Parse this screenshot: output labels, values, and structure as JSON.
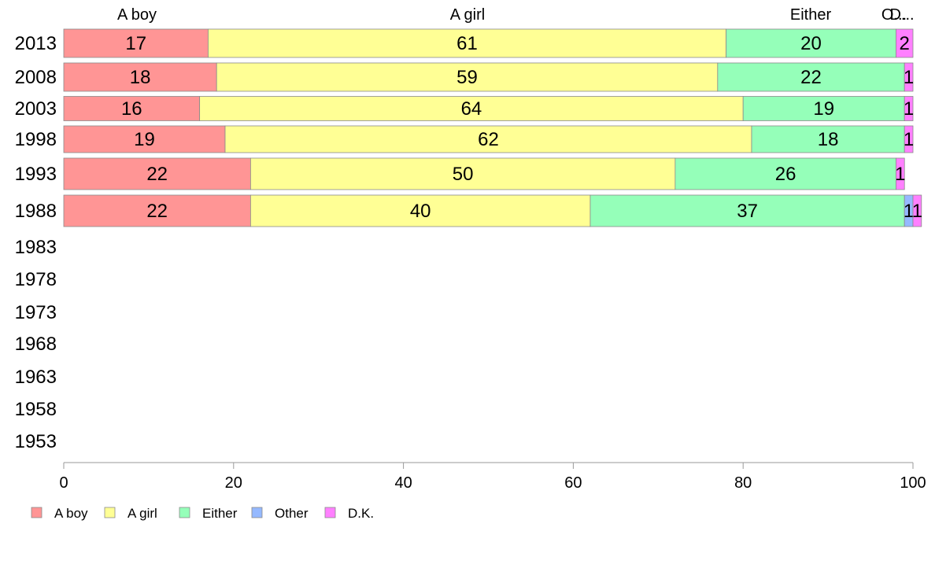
{
  "chart_data": {
    "type": "bar",
    "orientation": "horizontal",
    "stacked": true,
    "categories": [
      "2013",
      "2008",
      "2003",
      "1998",
      "1993",
      "1988",
      "1983",
      "1978",
      "1973",
      "1968",
      "1963",
      "1958",
      "1953"
    ],
    "series": [
      {
        "name": "A boy",
        "color": "#ff9595",
        "values": [
          17,
          18,
          16,
          19,
          22,
          22,
          null,
          null,
          null,
          null,
          null,
          null,
          null
        ]
      },
      {
        "name": "A girl",
        "color": "#ffff95",
        "values": [
          61,
          59,
          64,
          62,
          50,
          40,
          null,
          null,
          null,
          null,
          null,
          null,
          null
        ]
      },
      {
        "name": "Either",
        "color": "#95ffb9",
        "values": [
          20,
          22,
          19,
          18,
          26,
          37,
          null,
          null,
          null,
          null,
          null,
          null,
          null
        ]
      },
      {
        "name": "Other",
        "color": "#95b9ff",
        "values": [
          0,
          0,
          0,
          0,
          0,
          1,
          null,
          null,
          null,
          null,
          null,
          null,
          null
        ]
      },
      {
        "name": "D.K.",
        "color": "#ff80ff",
        "values": [
          2,
          1,
          1,
          1,
          1,
          1,
          null,
          null,
          null,
          null,
          null,
          null,
          null
        ]
      }
    ],
    "column_headers": [
      "A boy",
      "A girl",
      "Either",
      "O...",
      "D..."
    ],
    "xlim": [
      0,
      100
    ],
    "xticks": [
      "0",
      "20",
      "40",
      "60",
      "80",
      "100"
    ],
    "grid": false,
    "legend_position": "bottom-left"
  }
}
